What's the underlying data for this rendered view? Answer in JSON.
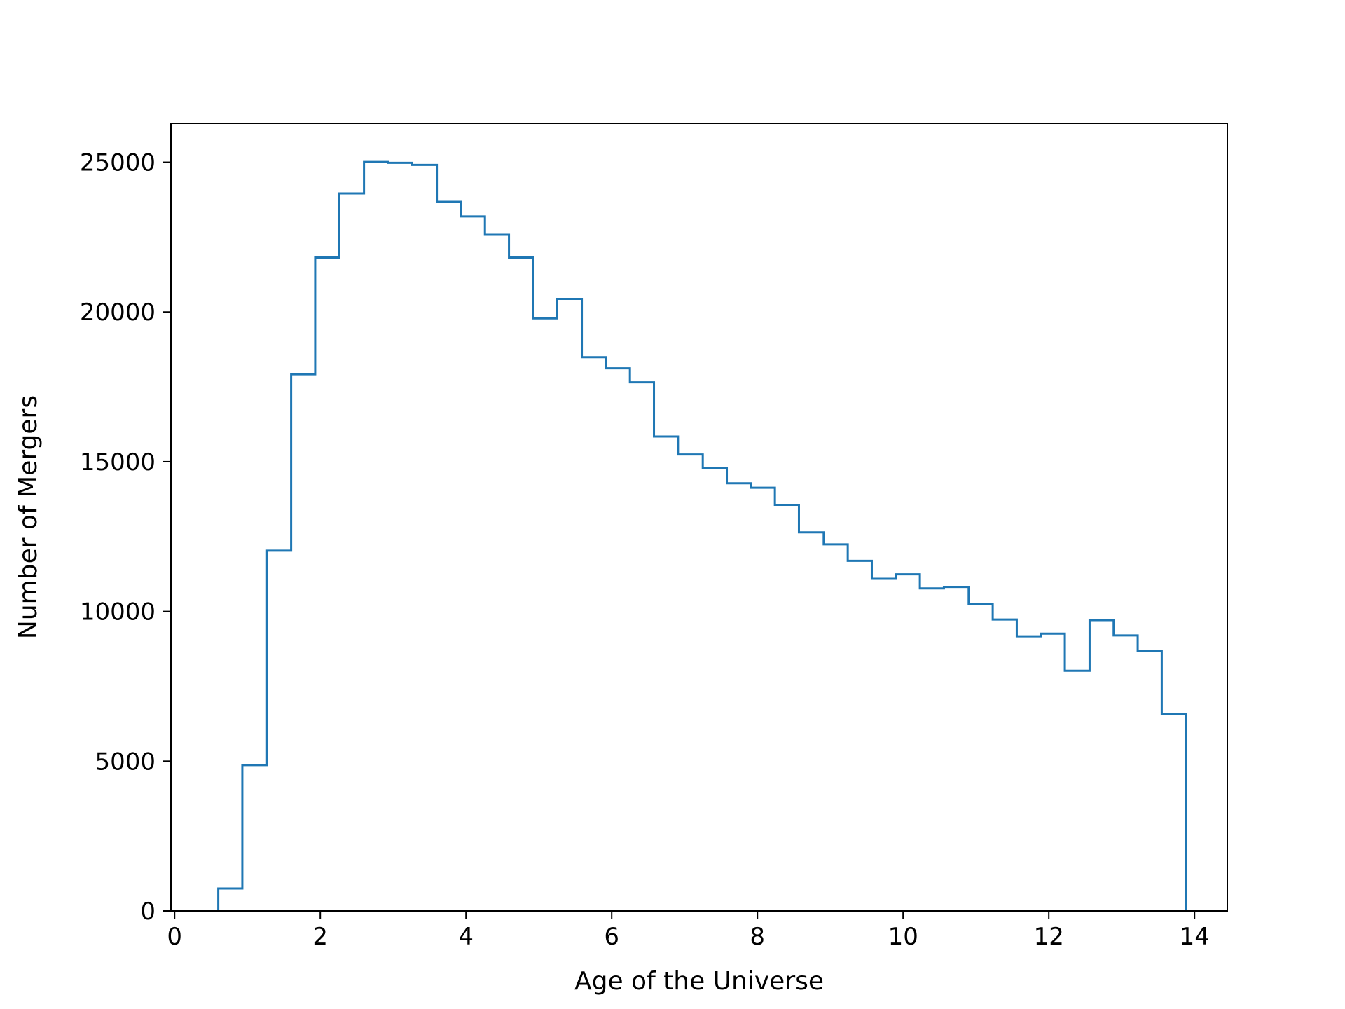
{
  "chart_data": {
    "type": "histogram-step",
    "title": "",
    "xlabel": "Age of the Universe",
    "ylabel": "Number of Mergers",
    "xlim": [
      -0.05,
      14.45
    ],
    "ylim": [
      0,
      26300
    ],
    "x_ticks": [
      0,
      2,
      4,
      6,
      8,
      10,
      12,
      14
    ],
    "x_tick_labels": [
      "0",
      "2",
      "4",
      "6",
      "8",
      "10",
      "12",
      "14"
    ],
    "y_ticks": [
      0,
      5000,
      10000,
      15000,
      20000,
      25000
    ],
    "y_tick_labels": [
      "0",
      "5000",
      "10000",
      "15000",
      "20000",
      "25000"
    ],
    "grid": false,
    "line_color": "#1f77b4",
    "bin_edges": [
      0.6,
      0.93,
      1.27,
      1.6,
      1.93,
      2.26,
      2.6,
      2.93,
      3.26,
      3.6,
      3.93,
      4.26,
      4.59,
      4.92,
      5.25,
      5.59,
      5.92,
      6.25,
      6.58,
      6.91,
      7.25,
      7.58,
      7.91,
      8.24,
      8.57,
      8.91,
      9.24,
      9.57,
      9.9,
      10.23,
      10.56,
      10.9,
      11.23,
      11.56,
      11.89,
      12.22,
      12.56,
      12.89,
      13.22,
      13.55,
      13.88
    ],
    "counts": [
      750,
      4870,
      12030,
      17920,
      21820,
      23960,
      25010,
      24980,
      24910,
      23680,
      23190,
      22580,
      21820,
      19790,
      20440,
      18490,
      18120,
      17650,
      15840,
      15240,
      14780,
      14280,
      14130,
      13560,
      12640,
      12240,
      11690,
      11090,
      11240,
      10770,
      10820,
      10250,
      9730,
      9170,
      9260,
      8020,
      9710,
      9200,
      8680,
      6580
    ]
  }
}
